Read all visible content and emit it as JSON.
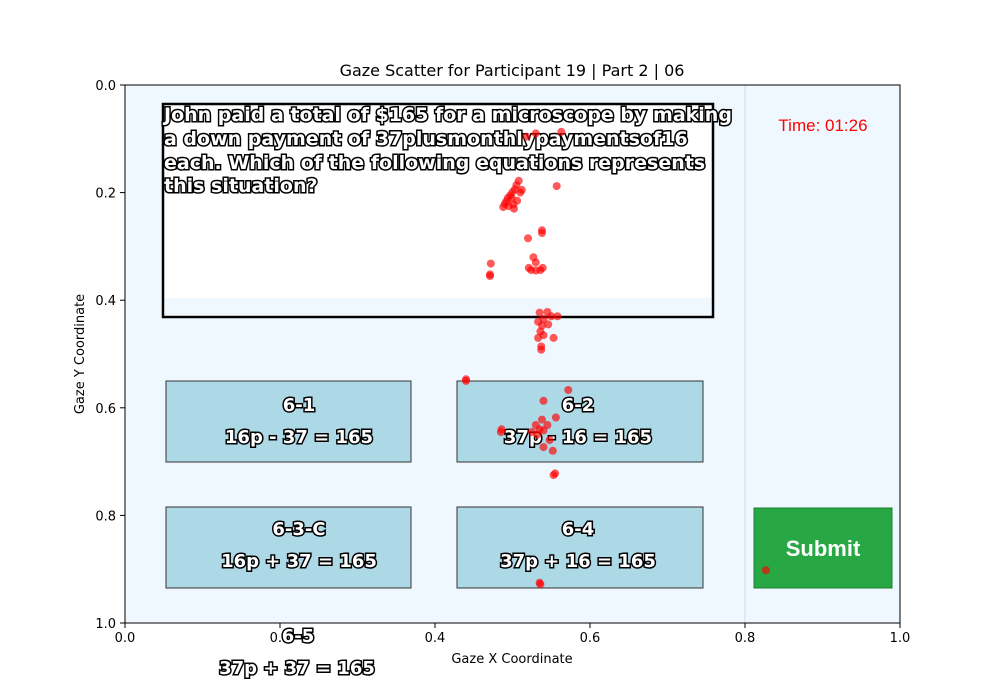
{
  "chart_data": {
    "type": "scatter",
    "title": "Gaze Scatter for Participant 19 | Part 2 | 06",
    "xlabel": "Gaze X Coordinate",
    "ylabel": "Gaze Y Coordinate",
    "xlim": [
      0.0,
      1.0
    ],
    "ylim": [
      1.0,
      0.0
    ],
    "y_inverted": true,
    "x_ticks": [
      "0.0",
      "0.2",
      "0.4",
      "0.6",
      "0.8",
      "1.0"
    ],
    "y_ticks": [
      "0.0",
      "0.2",
      "0.4",
      "0.6",
      "0.8",
      "1.0"
    ],
    "grid": false,
    "legend": "none",
    "point_color": "#ff0000",
    "background_color": "#f0f8ff",
    "answer_box_color": "#add8e6",
    "submit_color": "#28a745",
    "timer_color": "#ff0000",
    "stimulus": {
      "question_lines": [
        "John paid a total of $165 for a microscope by making",
        "a down payment of 37plusmonthlypaymentsof16",
        "each. Which of the following equations represents",
        "this situation?"
      ],
      "timer": "Time: 01:26",
      "submit_label": "Submit",
      "options": [
        {
          "id": "6-1",
          "equation": "16p - 37 = 165"
        },
        {
          "id": "6-2",
          "equation": "37p - 16 = 165"
        },
        {
          "id": "6-3-C",
          "equation": "16p + 37 = 165"
        },
        {
          "id": "6-4",
          "equation": "37p + 16 = 165"
        },
        {
          "id": "6-5",
          "equation": "37p + 37 = 165"
        }
      ]
    },
    "points": [
      [
        0.563,
        0.087
      ],
      [
        0.557,
        0.188
      ],
      [
        0.53,
        0.09
      ],
      [
        0.518,
        0.096
      ],
      [
        0.508,
        0.178
      ],
      [
        0.505,
        0.186
      ],
      [
        0.503,
        0.194
      ],
      [
        0.5,
        0.199
      ],
      [
        0.497,
        0.205
      ],
      [
        0.494,
        0.21
      ],
      [
        0.492,
        0.216
      ],
      [
        0.49,
        0.221
      ],
      [
        0.488,
        0.227
      ],
      [
        0.499,
        0.21
      ],
      [
        0.51,
        0.2
      ],
      [
        0.506,
        0.215
      ],
      [
        0.501,
        0.222
      ],
      [
        0.512,
        0.195
      ],
      [
        0.502,
        0.23
      ],
      [
        0.495,
        0.225
      ],
      [
        0.52,
        0.285
      ],
      [
        0.538,
        0.27
      ],
      [
        0.538,
        0.275
      ],
      [
        0.527,
        0.32
      ],
      [
        0.53,
        0.33
      ],
      [
        0.521,
        0.34
      ],
      [
        0.524,
        0.344
      ],
      [
        0.53,
        0.345
      ],
      [
        0.536,
        0.344
      ],
      [
        0.539,
        0.34
      ],
      [
        0.472,
        0.332
      ],
      [
        0.471,
        0.352
      ],
      [
        0.471,
        0.355
      ],
      [
        0.535,
        0.423
      ],
      [
        0.545,
        0.422
      ],
      [
        0.55,
        0.43
      ],
      [
        0.558,
        0.43
      ],
      [
        0.54,
        0.435
      ],
      [
        0.533,
        0.44
      ],
      [
        0.538,
        0.447
      ],
      [
        0.546,
        0.445
      ],
      [
        0.536,
        0.458
      ],
      [
        0.54,
        0.465
      ],
      [
        0.533,
        0.47
      ],
      [
        0.553,
        0.47
      ],
      [
        0.537,
        0.486
      ],
      [
        0.537,
        0.492
      ],
      [
        0.44,
        0.547
      ],
      [
        0.44,
        0.55
      ],
      [
        0.572,
        0.567
      ],
      [
        0.54,
        0.587
      ],
      [
        0.556,
        0.618
      ],
      [
        0.538,
        0.622
      ],
      [
        0.53,
        0.632
      ],
      [
        0.545,
        0.632
      ],
      [
        0.535,
        0.64
      ],
      [
        0.54,
        0.642
      ],
      [
        0.525,
        0.645
      ],
      [
        0.532,
        0.65
      ],
      [
        0.486,
        0.64
      ],
      [
        0.485,
        0.645
      ],
      [
        0.548,
        0.66
      ],
      [
        0.54,
        0.673
      ],
      [
        0.552,
        0.68
      ],
      [
        0.555,
        0.722
      ],
      [
        0.553,
        0.725
      ],
      [
        0.535,
        0.925
      ],
      [
        0.536,
        0.928
      ],
      [
        0.827,
        0.902
      ]
    ]
  }
}
